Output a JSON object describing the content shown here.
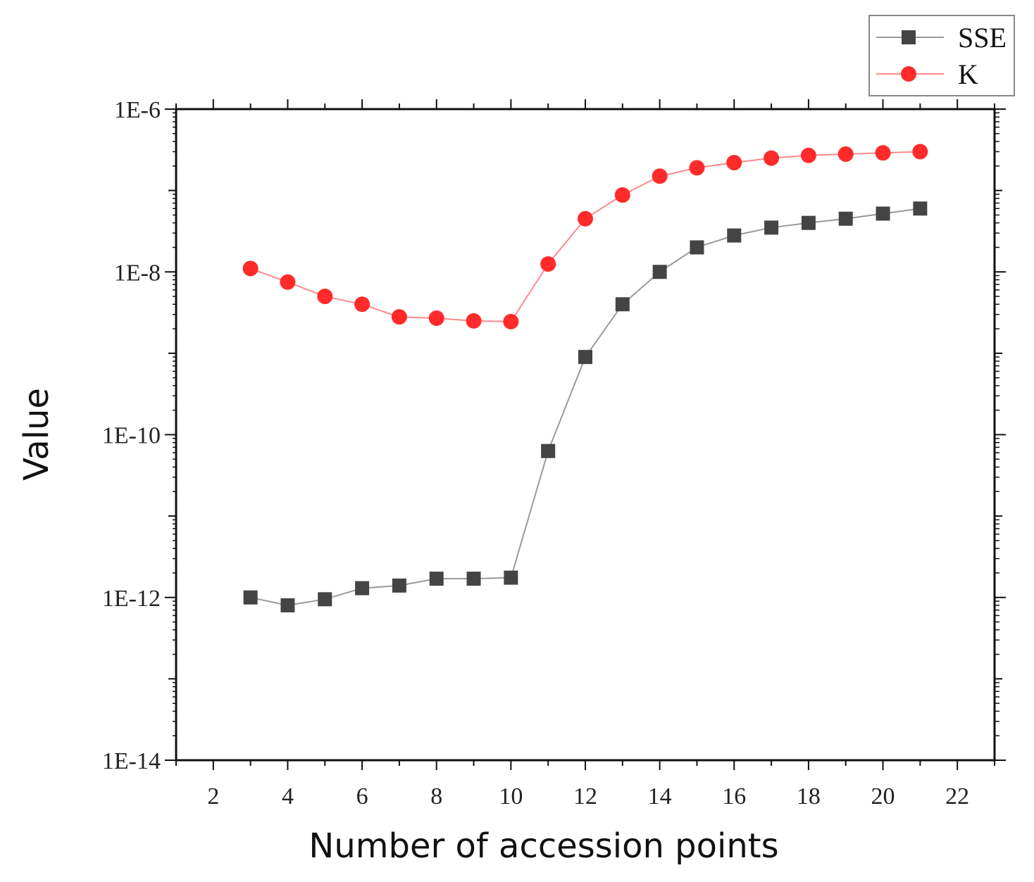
{
  "chart_data": {
    "type": "line",
    "xlabel": "Number of accession points",
    "ylabel": "Value",
    "xlim": [
      1,
      23
    ],
    "ylim": [
      1e-14,
      1e-06
    ],
    "yscale": "log",
    "x_ticks": [
      2,
      4,
      6,
      8,
      10,
      12,
      14,
      16,
      18,
      20,
      22
    ],
    "x_tick_labels": [
      "2",
      "4",
      "6",
      "8",
      "10",
      "12",
      "14",
      "16",
      "18",
      "20",
      "22"
    ],
    "y_ticks": [
      1e-14,
      1e-12,
      1e-10,
      1e-08,
      1e-06
    ],
    "y_tick_labels": [
      "1E-14",
      "1E-12",
      "1E-10",
      "1E-8",
      "1E-6"
    ],
    "grid": false,
    "legend_position": "top-right",
    "x": [
      3,
      4,
      5,
      6,
      7,
      8,
      9,
      10,
      11,
      12,
      13,
      14,
      15,
      16,
      17,
      18,
      19,
      20,
      21
    ],
    "series": [
      {
        "name": "SSE",
        "color": "#444444",
        "line_color": "#9a9a9a",
        "marker": "square",
        "values": [
          1e-12,
          8e-13,
          9.5e-13,
          1.3e-12,
          1.4e-12,
          1.7e-12,
          1.7e-12,
          1.75e-12,
          6.3e-11,
          9e-10,
          4e-09,
          1e-08,
          2e-08,
          2.8e-08,
          3.5e-08,
          4e-08,
          4.5e-08,
          5.2e-08,
          6e-08
        ]
      },
      {
        "name": "K",
        "color": "#ff2b2b",
        "line_color": "#ff8a8a",
        "marker": "circle",
        "values": [
          1.1e-08,
          7.5e-09,
          5e-09,
          4e-09,
          2.8e-09,
          2.7e-09,
          2.5e-09,
          2.45e-09,
          1.25e-08,
          4.5e-08,
          8.8e-08,
          1.5e-07,
          1.9e-07,
          2.2e-07,
          2.5e-07,
          2.7e-07,
          2.8e-07,
          2.9e-07,
          3e-07
        ]
      }
    ]
  }
}
